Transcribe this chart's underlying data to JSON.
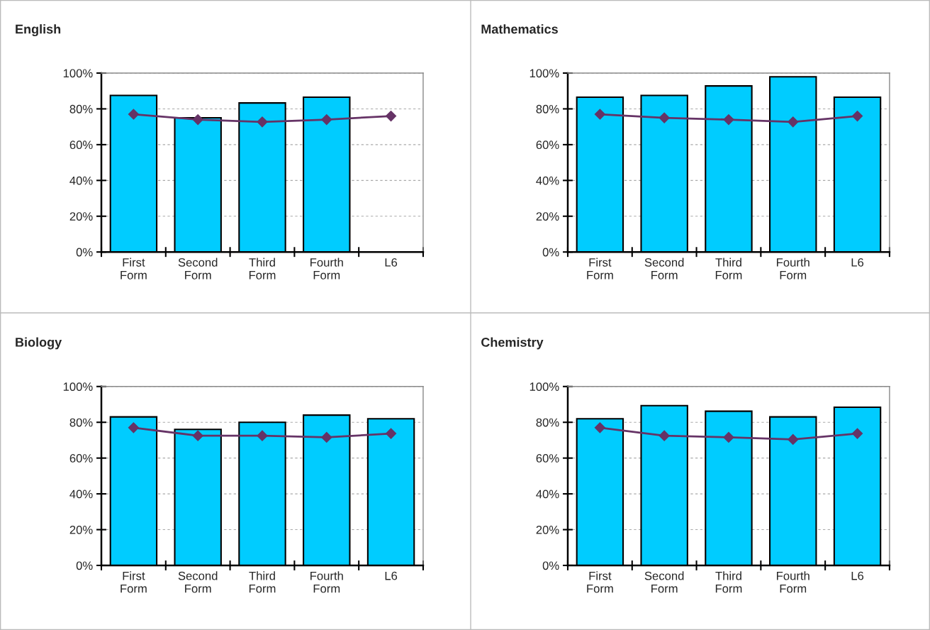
{
  "chart_data": [
    {
      "type": "bar",
      "title": "English",
      "categories": [
        "First\nForm",
        "Second\nForm",
        "Third\nForm",
        "Fourth\nForm",
        "L6"
      ],
      "series": [
        {
          "color": "#00ccff",
          "values": [
            87.5,
            75,
            83.3,
            86.5,
            null
          ]
        },
        {
          "type": "line",
          "color": "#663366",
          "marker": "diamond",
          "values": [
            77,
            74,
            72.7,
            74,
            76
          ]
        }
      ],
      "ylim": [
        0,
        100
      ],
      "yticks": [
        {
          "value": 0,
          "label": "0%"
        },
        {
          "value": 20,
          "label": "20%"
        },
        {
          "value": 40,
          "label": "40%"
        },
        {
          "value": 60,
          "label": "60%"
        },
        {
          "value": 80,
          "label": "80%"
        },
        {
          "value": 100,
          "label": "100%"
        }
      ],
      "grid": "y",
      "legend": false
    },
    {
      "type": "bar",
      "title": "Mathematics",
      "categories": [
        "First\nForm",
        "Second\nForm",
        "Third\nForm",
        "Fourth\nForm",
        "L6"
      ],
      "series": [
        {
          "color": "#00ccff",
          "values": [
            86.5,
            87.5,
            92.8,
            97.9,
            86.5
          ]
        },
        {
          "type": "line",
          "color": "#663366",
          "marker": "diamond",
          "values": [
            77,
            75,
            74,
            72.7,
            76
          ]
        }
      ],
      "ylim": [
        0,
        100
      ],
      "yticks": [
        {
          "value": 0,
          "label": "0%"
        },
        {
          "value": 20,
          "label": "20%"
        },
        {
          "value": 40,
          "label": "40%"
        },
        {
          "value": 60,
          "label": "60%"
        },
        {
          "value": 80,
          "label": "80%"
        },
        {
          "value": 100,
          "label": "100%"
        }
      ],
      "grid": "y",
      "legend": false
    },
    {
      "type": "bar",
      "title": "Biology",
      "categories": [
        "First\nForm",
        "Second\nForm",
        "Third\nForm",
        "Fourth\nForm",
        "L6"
      ],
      "series": [
        {
          "color": "#00ccff",
          "values": [
            83,
            76,
            80,
            84,
            82
          ]
        },
        {
          "type": "line",
          "color": "#663366",
          "marker": "diamond",
          "values": [
            77,
            72.5,
            72.5,
            71.6,
            73.7
          ]
        }
      ],
      "ylim": [
        0,
        100
      ],
      "yticks": [
        {
          "value": 0,
          "label": "0%"
        },
        {
          "value": 20,
          "label": "20%"
        },
        {
          "value": 40,
          "label": "40%"
        },
        {
          "value": 60,
          "label": "60%"
        },
        {
          "value": 80,
          "label": "80%"
        },
        {
          "value": 100,
          "label": "100%"
        }
      ],
      "grid": "y",
      "legend": false
    },
    {
      "type": "bar",
      "title": "Chemistry",
      "categories": [
        "First\nForm",
        "Second\nForm",
        "Third\nForm",
        "Fourth\nForm",
        "L6"
      ],
      "series": [
        {
          "color": "#00ccff",
          "values": [
            82,
            89.3,
            86.2,
            83,
            88.4
          ]
        },
        {
          "type": "line",
          "color": "#663366",
          "marker": "diamond",
          "values": [
            77,
            72.5,
            71.6,
            70.4,
            73.7
          ]
        }
      ],
      "ylim": [
        0,
        100
      ],
      "yticks": [
        {
          "value": 0,
          "label": "0%"
        },
        {
          "value": 20,
          "label": "20%"
        },
        {
          "value": 40,
          "label": "40%"
        },
        {
          "value": 60,
          "label": "60%"
        },
        {
          "value": 80,
          "label": "80%"
        },
        {
          "value": 100,
          "label": "100%"
        }
      ],
      "grid": "y",
      "legend": false
    }
  ]
}
